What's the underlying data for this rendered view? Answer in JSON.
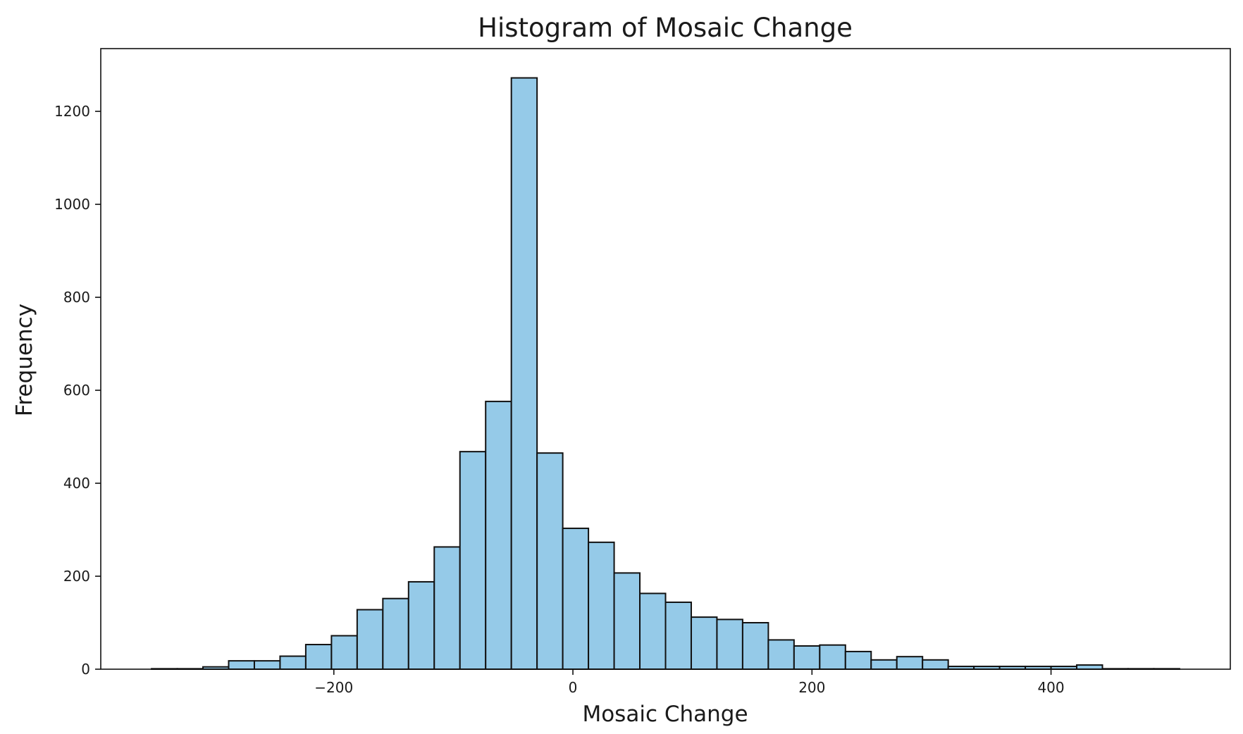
{
  "chart_data": {
    "type": "bar",
    "title": "Histogram of Mosaic Change",
    "xlabel": "Mosaic Change",
    "ylabel": "Frequency",
    "bar_color": "#95cae8",
    "edge_color": "#111111",
    "grid": false,
    "xlim": [
      -395,
      550
    ],
    "ylim": [
      0,
      1335
    ],
    "xticks": [
      -200,
      0,
      200,
      400
    ],
    "xtick_labels": [
      "−200",
      "0",
      "200",
      "400"
    ],
    "yticks": [
      0,
      200,
      400,
      600,
      800,
      1000,
      1200
    ],
    "ytick_labels": [
      "0",
      "200",
      "400",
      "600",
      "800",
      "1000",
      "1200"
    ],
    "bin_edges": [
      -352.5,
      -331.0,
      -309.5,
      -288.0,
      -266.5,
      -245.0,
      -223.5,
      -202.0,
      -180.5,
      -159.0,
      -137.5,
      -116.0,
      -94.5,
      -73.0,
      -51.5,
      -30.0,
      -8.5,
      13.0,
      34.5,
      56.0,
      77.5,
      99.0,
      120.5,
      142.0,
      163.5,
      185.0,
      206.5,
      228.0,
      249.5,
      271.0,
      292.5,
      314.0,
      335.5,
      357.0,
      378.5,
      400.0,
      421.5,
      443.0,
      464.5,
      486.0,
      507.5
    ],
    "values": [
      1,
      1,
      5,
      18,
      18,
      28,
      53,
      72,
      128,
      152,
      188,
      263,
      468,
      576,
      1272,
      465,
      303,
      273,
      207,
      163,
      144,
      112,
      107,
      100,
      63,
      50,
      52,
      38,
      20,
      27,
      20,
      6,
      6,
      6,
      6,
      6,
      9,
      1,
      1,
      1
    ]
  }
}
